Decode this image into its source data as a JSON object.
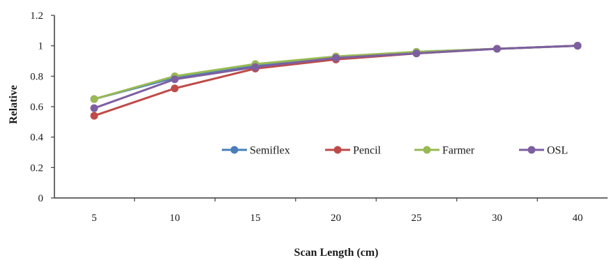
{
  "chart_data": {
    "type": "line",
    "categories": [
      "5",
      "10",
      "15",
      "20",
      "25",
      "30",
      "40"
    ],
    "xlabel": "Scan Length (cm)",
    "ylabel": "Relative",
    "ylim": [
      0,
      1.2
    ],
    "yticks": [
      "0",
      "0.2",
      "0.4",
      "0.6",
      "0.8",
      "1",
      "1.2"
    ],
    "grid": false,
    "legend_position": "bottom-right inside plot",
    "series": [
      {
        "name": "Semiflex",
        "color": "#4a7ebb",
        "values": [
          0.65,
          0.79,
          0.87,
          0.92,
          0.96,
          0.98,
          1.0
        ]
      },
      {
        "name": "Pencil",
        "color": "#be4b48",
        "values": [
          0.54,
          0.72,
          0.85,
          0.91,
          0.95,
          0.98,
          1.0
        ]
      },
      {
        "name": "Farmer",
        "color": "#98b954",
        "values": [
          0.65,
          0.8,
          0.88,
          0.93,
          0.96,
          0.98,
          1.0
        ]
      },
      {
        "name": "OSL",
        "color": "#7d5fa0",
        "values": [
          0.59,
          0.78,
          0.86,
          0.92,
          0.95,
          0.98,
          1.0
        ]
      }
    ]
  }
}
